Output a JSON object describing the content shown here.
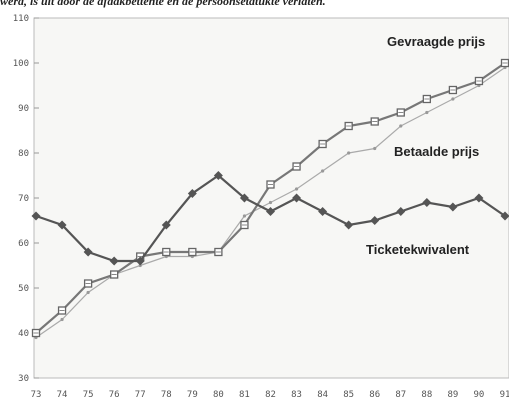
{
  "caption": "werd, is uit door de afdakbettente en de persoonsetatukte verlaten.",
  "chart_data": {
    "type": "line",
    "x": [
      "73",
      "74",
      "75",
      "76",
      "77",
      "78",
      "79",
      "80",
      "81",
      "82",
      "83",
      "84",
      "85",
      "86",
      "87",
      "88",
      "89",
      "90",
      "91"
    ],
    "ylim": [
      30,
      110
    ],
    "yticks": [
      30,
      40,
      50,
      60,
      70,
      80,
      90,
      100,
      110
    ],
    "grid": false,
    "series": [
      {
        "name": "Gevraagde prijs",
        "marker": "square",
        "color": "#777777",
        "values": [
          40,
          45,
          51,
          53,
          57,
          58,
          58,
          58,
          64,
          73,
          77,
          82,
          86,
          87,
          89,
          92,
          94,
          96,
          100
        ]
      },
      {
        "name": "Betaalde prijs",
        "marker": "small",
        "color": "#aaaaaa",
        "values": [
          39,
          43,
          49,
          53,
          55,
          57,
          57,
          58,
          66,
          69,
          72,
          76,
          80,
          81,
          86,
          89,
          92,
          95,
          99
        ]
      },
      {
        "name": "Ticketekwivalent",
        "marker": "diamond",
        "color": "#555555",
        "values": [
          66,
          64,
          58,
          56,
          56,
          64,
          71,
          75,
          70,
          67,
          70,
          67,
          64,
          65,
          67,
          69,
          68,
          70,
          66
        ]
      }
    ]
  }
}
